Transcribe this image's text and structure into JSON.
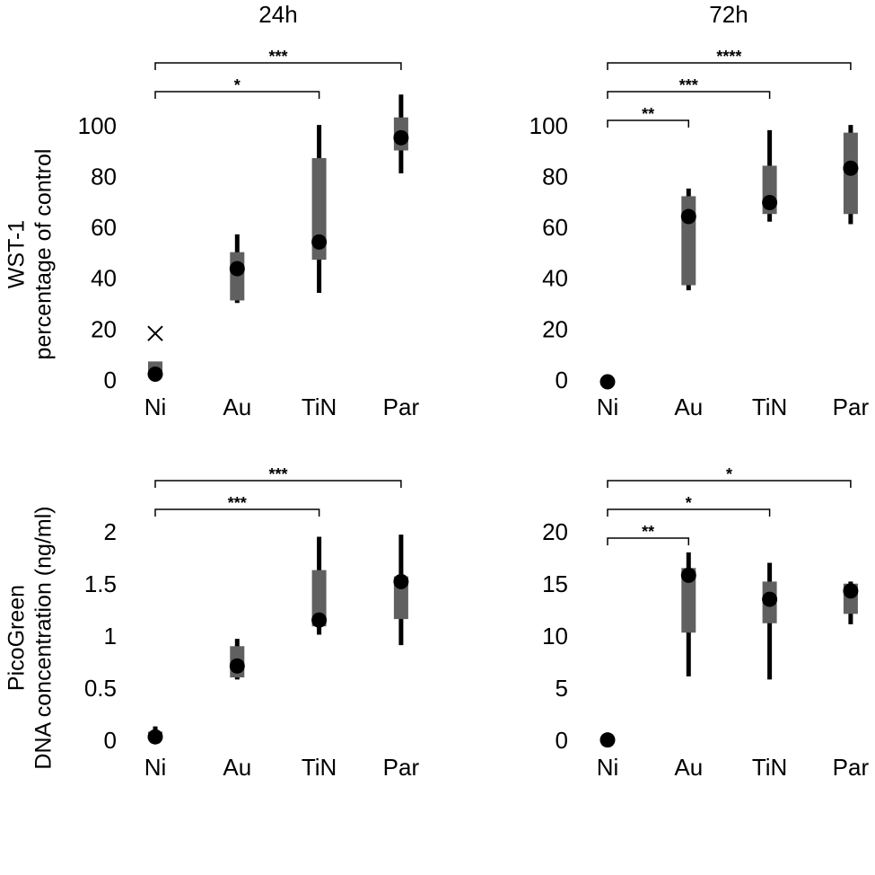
{
  "chart_data": [
    {
      "type": "box",
      "title": "24h",
      "ylabel": [
        "WST-1",
        "percentage of control"
      ],
      "categories": [
        "Ni",
        "Au",
        "TiN",
        "Par"
      ],
      "whisker_low": [
        null,
        31,
        35,
        82
      ],
      "q1": [
        3,
        32,
        48,
        91
      ],
      "median": [
        3,
        44.5,
        55,
        96
      ],
      "q3": [
        8,
        51,
        88,
        104
      ],
      "whisker_high": [
        null,
        58,
        101,
        113
      ],
      "outliers": [
        [
          19
        ],
        [],
        [],
        []
      ],
      "ylim": [
        0,
        100
      ],
      "yticks": [
        0,
        20,
        40,
        60,
        80,
        100
      ],
      "box_color": "#606060",
      "whisker_color": "#000000",
      "brackets": [
        {
          "from": "Ni",
          "to": "TiN",
          "label": "*"
        },
        {
          "from": "Ni",
          "to": "Par",
          "label": "***"
        }
      ]
    },
    {
      "type": "box",
      "title": "72h",
      "categories": [
        "Ni",
        "Au",
        "TiN",
        "Par"
      ],
      "whisker_low": [
        null,
        36,
        63,
        62
      ],
      "q1": [
        null,
        38,
        66,
        66
      ],
      "median": [
        0,
        65,
        70.5,
        84
      ],
      "q3": [
        null,
        73,
        85,
        98
      ],
      "whisker_high": [
        null,
        76,
        99,
        101
      ],
      "ylim": [
        0,
        100
      ],
      "yticks": [
        0,
        20,
        40,
        60,
        80,
        100
      ],
      "box_color": "#606060",
      "whisker_color": "#000000",
      "brackets": [
        {
          "from": "Ni",
          "to": "Au",
          "label": "**"
        },
        {
          "from": "Ni",
          "to": "TiN",
          "label": "***"
        },
        {
          "from": "Ni",
          "to": "Par",
          "label": "****"
        }
      ]
    },
    {
      "type": "box",
      "ylabel": [
        "PicoGreen",
        "DNA concentration (ng/ml)"
      ],
      "categories": [
        "Ni",
        "Au",
        "TiN",
        "Par"
      ],
      "whisker_low": [
        0.02,
        0.6,
        1.03,
        0.93
      ],
      "q1": [
        0.04,
        0.62,
        1.11,
        1.18
      ],
      "median": [
        0.05,
        0.73,
        1.17,
        1.54
      ],
      "q3": [
        0.1,
        0.92,
        1.65,
        1.59
      ],
      "whisker_high": [
        0.15,
        0.99,
        1.97,
        1.99
      ],
      "ylim": [
        0,
        2
      ],
      "yticks": [
        0,
        0.5,
        1,
        1.5,
        2
      ],
      "box_color": "#606060",
      "whisker_color": "#000000",
      "brackets": [
        {
          "from": "Ni",
          "to": "TiN",
          "label": "***"
        },
        {
          "from": "Ni",
          "to": "Par",
          "label": "***"
        }
      ]
    },
    {
      "type": "box",
      "categories": [
        "Ni",
        "Au",
        "TiN",
        "Par"
      ],
      "whisker_low": [
        null,
        6.3,
        6,
        11.3
      ],
      "q1": [
        null,
        10.5,
        11.4,
        12.3
      ],
      "median": [
        0.2,
        16,
        13.7,
        14.5
      ],
      "q3": [
        null,
        16.7,
        15.4,
        15.2
      ],
      "whisker_high": [
        null,
        18.2,
        17.2,
        15.4
      ],
      "ylim": [
        0,
        20
      ],
      "yticks": [
        0,
        5,
        10,
        15,
        20
      ],
      "box_color": "#606060",
      "whisker_color": "#000000",
      "brackets": [
        {
          "from": "Ni",
          "to": "Au",
          "label": "**"
        },
        {
          "from": "Ni",
          "to": "TiN",
          "label": "*"
        },
        {
          "from": "Ni",
          "to": "Par",
          "label": "*"
        }
      ]
    }
  ]
}
